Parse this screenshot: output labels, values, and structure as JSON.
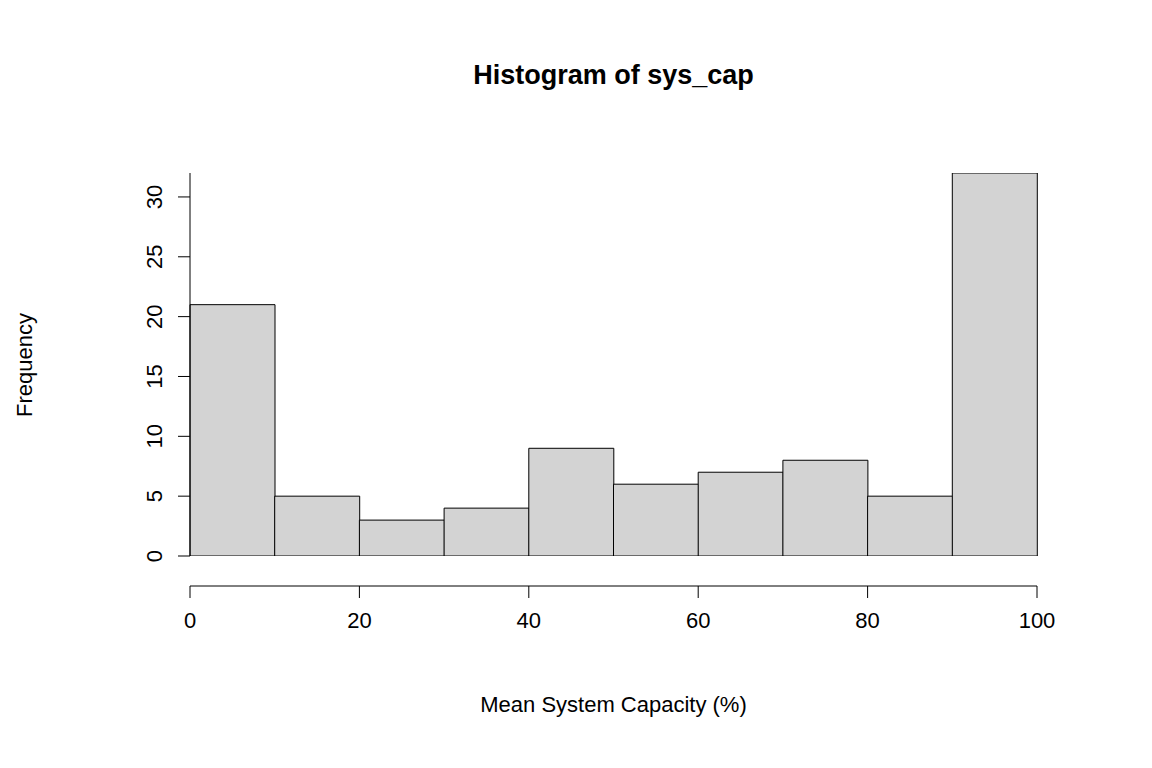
{
  "chart_data": {
    "type": "histogram",
    "title": "Histogram of sys_cap",
    "x_label": "Mean System Capacity (%)",
    "y_label": "Frequency",
    "bins": [
      0,
      10,
      20,
      30,
      40,
      50,
      60,
      70,
      80,
      90,
      100
    ],
    "values": [
      21,
      5,
      3,
      4,
      9,
      6,
      7,
      8,
      5,
      32
    ],
    "color": "#d3d3d3",
    "xlim": [
      0,
      100
    ],
    "xticks": [
      0,
      20,
      40,
      60,
      80,
      100
    ],
    "ylim": [
      0,
      32
    ],
    "yticks": [
      0,
      5,
      10,
      15,
      20,
      25,
      30
    ],
    "grid": false
  }
}
